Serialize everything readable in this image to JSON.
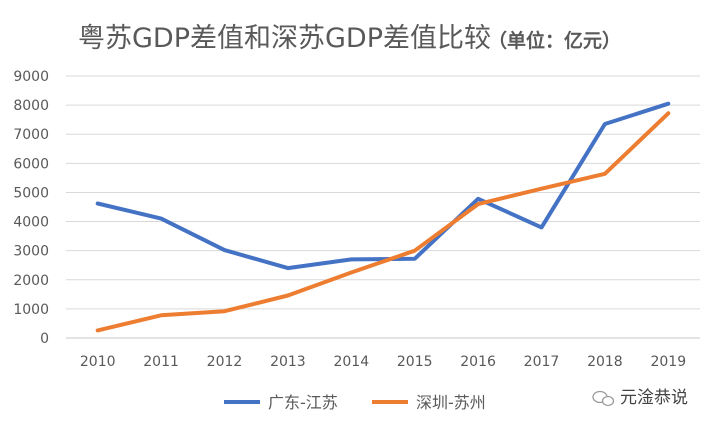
{
  "chart_data": {
    "type": "line",
    "title": "粤苏GDP差值和深苏GDP差值比较",
    "title_unit": "（单位：亿元）",
    "x": [
      "2010",
      "2011",
      "2012",
      "2013",
      "2014",
      "2015",
      "2016",
      "2017",
      "2018",
      "2019"
    ],
    "ylim": [
      0,
      9000
    ],
    "yticks": [
      "0",
      "1000",
      "2000",
      "3000",
      "4000",
      "5000",
      "6000",
      "7000",
      "8000",
      "9000"
    ],
    "grid": true,
    "legend_position": "bottom",
    "series": [
      {
        "name": "广东-江苏",
        "color": "#4472C4",
        "values": [
          4620,
          4100,
          3020,
          2400,
          2700,
          2720,
          4780,
          3800,
          7350,
          8050
        ]
      },
      {
        "name": "深圳-苏州",
        "color": "#ED7D31",
        "values": [
          260,
          780,
          920,
          1460,
          2250,
          3000,
          4600,
          5130,
          5640,
          7720
        ]
      }
    ]
  },
  "watermark": "元淦恭说"
}
